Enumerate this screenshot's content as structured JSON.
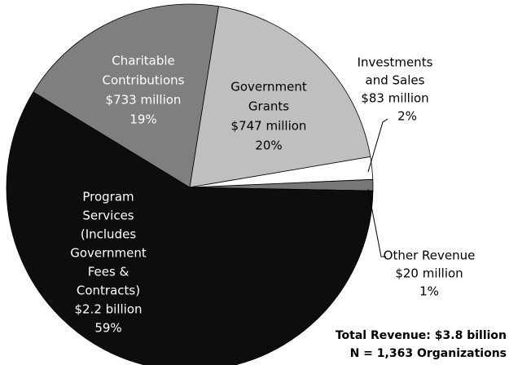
{
  "chart_data": {
    "type": "pie",
    "categories": [
      [
        "Other Revenue"
      ],
      [
        "Program",
        "Services",
        "(Includes",
        "Government",
        "Fees &",
        "Contracts)"
      ],
      [
        "Charitable",
        "Contributions"
      ],
      [
        "Government",
        "Grants"
      ],
      [
        "Investments",
        "and Sales"
      ]
    ],
    "amount_labels": [
      "$20 million",
      "$2.2 billion",
      "$733 million",
      "$747 million",
      "$83 million"
    ],
    "values": [
      1,
      59,
      19,
      20,
      2
    ],
    "value_labels": [
      "1%",
      "59%",
      "19%",
      "20%",
      "2%"
    ],
    "colors": [
      "#777777",
      "#0d0d0d",
      "#7f7f7f",
      "#bfbfbf",
      "#ffffff"
    ],
    "notes": [
      "Total Revenue: $3.8 billion",
      "N = 1,363 Organizations"
    ]
  }
}
